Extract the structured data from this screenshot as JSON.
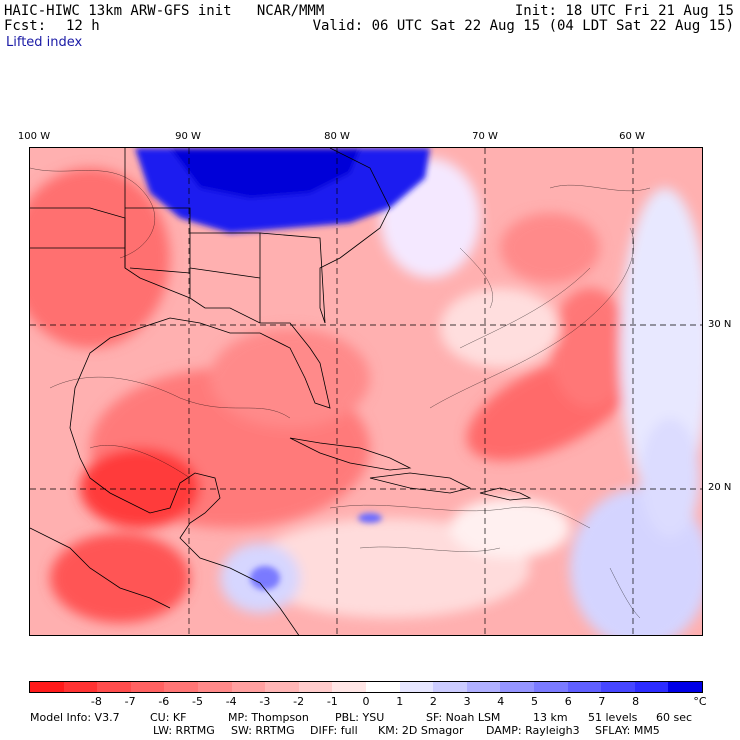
{
  "header": {
    "model": "HAIC-HIWC 13km ARW-GFS init   NCAR/MMM",
    "forecast_label": "Fcst:",
    "forecast_value": "12 h",
    "field": "Lifted index",
    "init": "Init: 18 UTC Fri 21 Aug 15",
    "valid": "Valid: 06 UTC Sat 22 Aug 15 (04 LDT Sat 22 Aug 15)"
  },
  "map": {
    "lon_labels": [
      "100 W",
      "90 W",
      "80 W",
      "70 W",
      "60 W"
    ],
    "lat_labels": [
      "30 N",
      "20 N"
    ]
  },
  "colorbar": {
    "colors": [
      "#ff1a1a",
      "#ff3333",
      "#ff4d4d",
      "#ff6262",
      "#ff7676",
      "#ff8a8a",
      "#ffa0a0",
      "#ffb6b6",
      "#ffcccc",
      "#ffe6e6",
      "#ffffff",
      "#e6e6ff",
      "#ccccff",
      "#b0b0ff",
      "#9595ff",
      "#7b7bff",
      "#6060ff",
      "#4646ff",
      "#2c2cff",
      "#0000e6"
    ],
    "tick_labels": [
      "-8",
      "-7",
      "-6",
      "-5",
      "-4",
      "-3",
      "-2",
      "-1",
      "0",
      "1",
      "2",
      "3",
      "4",
      "5",
      "6",
      "7",
      "8"
    ],
    "unit": "°C"
  },
  "footer": {
    "row1": [
      "Model Info: V3.7",
      "CU: KF",
      "MP: Thompson",
      "PBL: YSU",
      "SF: Noah LSM",
      "13 km",
      "51 levels",
      "60 sec"
    ],
    "row2": [
      "LW: RRTMG",
      "SW: RRTMG",
      "DIFF: full",
      "KM: 2D Smagor",
      "DAMP: Rayleigh3",
      "SFLAY: MM5"
    ]
  }
}
